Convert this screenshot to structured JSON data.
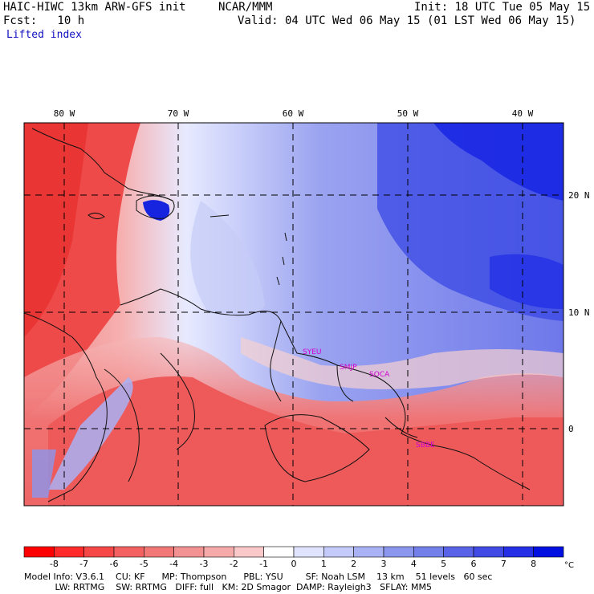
{
  "header": {
    "title_left": "HAIC-HIWC 13km ARW-GFS init",
    "center": "NCAR/MMM",
    "init": "Init: 18 UTC Tue 05 May 15",
    "fcst": "Fcst:   10 h",
    "valid": "Valid: 04 UTC Wed 06 May 15 (01 LST Wed 06 May 15)",
    "field": "Lifted index"
  },
  "map": {
    "lon_labels": [
      "80 W",
      "70 W",
      "60 W",
      "50 W",
      "40 W"
    ],
    "lat_labels": [
      "20 N",
      "10 N",
      "0"
    ],
    "stations": [
      "SYEU",
      "SMJP",
      "SOCA",
      "SBBE"
    ],
    "colors": {
      "negative": "#ee3030",
      "positive": "#1a28e6",
      "station": "#d000d0"
    }
  },
  "colorbar": {
    "ticks": [
      "-8",
      "-7",
      "-6",
      "-5",
      "-4",
      "-3",
      "-2",
      "-1",
      "0",
      "1",
      "2",
      "3",
      "4",
      "5",
      "6",
      "7",
      "8"
    ],
    "unit": "°C",
    "colors": [
      "#ff0000",
      "#ff2a2a",
      "#f74848",
      "#f46161",
      "#f27878",
      "#f29292",
      "#f7aaaa",
      "#fac8c8",
      "#ffffff",
      "#e0e4ff",
      "#c4cbfa",
      "#a8b2f5",
      "#8b96ee",
      "#7480ea",
      "#5963e8",
      "#3f4be4",
      "#2530e6",
      "#0010e0"
    ]
  },
  "footer": {
    "line1": "Model Info: V3.6.1    CU: KF      MP: Thompson      PBL: YSU        SF: Noah LSM    13 km    51 levels   60 sec",
    "line2": "           LW: RRTMG    SW: RRTMG   DIFF: full   KM: 2D Smagor  DAMP: Rayleigh3   SFLAY: MM5"
  }
}
